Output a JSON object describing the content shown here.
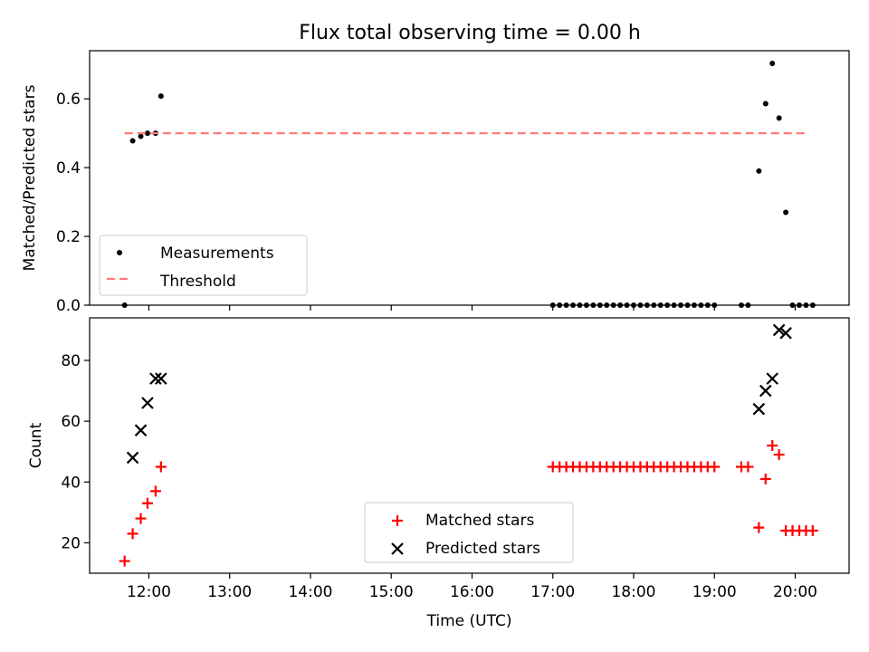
{
  "figure": {
    "title": "Flux total observing time = 0.00 h"
  },
  "chart_data": [
    {
      "type": "scatter",
      "panel": "top",
      "ylabel": "Matched/Predicted stars",
      "xlabel": "",
      "xlim": [
        "11:16",
        "20:40"
      ],
      "ylim": [
        0,
        0.74
      ],
      "yticks": [
        0.0,
        0.2,
        0.4,
        0.6
      ],
      "ytick_labels": [
        "0.0",
        "0.2",
        "0.4",
        "0.6"
      ],
      "grid": false,
      "legend_position": "lower-left",
      "series": [
        {
          "name": "Measurements",
          "style": "dot",
          "color": "#000000",
          "points": [
            [
              "11:42",
              0.0
            ],
            [
              "11:48",
              0.478
            ],
            [
              "11:54",
              0.491
            ],
            [
              "11:59",
              0.5
            ],
            [
              "12:05",
              0.5
            ],
            [
              "12:09",
              0.608
            ],
            [
              "17:00",
              0.0
            ],
            [
              "17:05",
              0.0
            ],
            [
              "17:10",
              0.0
            ],
            [
              "17:15",
              0.0
            ],
            [
              "17:20",
              0.0
            ],
            [
              "17:25",
              0.0
            ],
            [
              "17:30",
              0.0
            ],
            [
              "17:35",
              0.0
            ],
            [
              "17:40",
              0.0
            ],
            [
              "17:45",
              0.0
            ],
            [
              "17:50",
              0.0
            ],
            [
              "17:55",
              0.0
            ],
            [
              "18:00",
              0.0
            ],
            [
              "18:05",
              0.0
            ],
            [
              "18:10",
              0.0
            ],
            [
              "18:15",
              0.0
            ],
            [
              "18:20",
              0.0
            ],
            [
              "18:25",
              0.0
            ],
            [
              "18:30",
              0.0
            ],
            [
              "18:35",
              0.0
            ],
            [
              "18:40",
              0.0
            ],
            [
              "18:45",
              0.0
            ],
            [
              "18:50",
              0.0
            ],
            [
              "18:55",
              0.0
            ],
            [
              "19:00",
              0.0
            ],
            [
              "19:20",
              0.0
            ],
            [
              "19:25",
              0.0
            ],
            [
              "19:33",
              0.39
            ],
            [
              "19:38",
              0.586
            ],
            [
              "19:43",
              0.703
            ],
            [
              "19:48",
              0.544
            ],
            [
              "19:53",
              0.27
            ],
            [
              "19:58",
              0.0
            ],
            [
              "20:03",
              0.0
            ],
            [
              "20:08",
              0.0
            ],
            [
              "20:13",
              0.0
            ]
          ]
        },
        {
          "name": "Threshold",
          "style": "dashed-line",
          "color": "#ff7b7b",
          "points": [
            [
              "11:42",
              0.5
            ],
            [
              "20:09",
              0.5
            ]
          ]
        }
      ]
    },
    {
      "type": "scatter",
      "panel": "bottom",
      "ylabel": "Count",
      "xlabel": "Time (UTC)",
      "xlim": [
        "11:16",
        "20:40"
      ],
      "ylim": [
        10,
        94
      ],
      "yticks": [
        20,
        40,
        60,
        80
      ],
      "ytick_labels": [
        "20",
        "40",
        "60",
        "80"
      ],
      "xticks": [
        "12:00",
        "13:00",
        "14:00",
        "15:00",
        "16:00",
        "17:00",
        "18:00",
        "19:00",
        "20:00"
      ],
      "xtick_labels": [
        "12:00",
        "13:00",
        "14:00",
        "15:00",
        "16:00",
        "17:00",
        "18:00",
        "19:00",
        "20:00"
      ],
      "grid": false,
      "legend_position": "lower-center",
      "series": [
        {
          "name": "Matched stars",
          "style": "plus",
          "color": "#ff0000",
          "points": [
            [
              "11:42",
              14
            ],
            [
              "11:48",
              23
            ],
            [
              "11:54",
              28
            ],
            [
              "11:59",
              33
            ],
            [
              "12:05",
              37
            ],
            [
              "12:09",
              45
            ],
            [
              "17:00",
              45
            ],
            [
              "17:05",
              45
            ],
            [
              "17:10",
              45
            ],
            [
              "17:15",
              45
            ],
            [
              "17:20",
              45
            ],
            [
              "17:25",
              45
            ],
            [
              "17:30",
              45
            ],
            [
              "17:35",
              45
            ],
            [
              "17:40",
              45
            ],
            [
              "17:45",
              45
            ],
            [
              "17:50",
              45
            ],
            [
              "17:55",
              45
            ],
            [
              "18:00",
              45
            ],
            [
              "18:05",
              45
            ],
            [
              "18:10",
              45
            ],
            [
              "18:15",
              45
            ],
            [
              "18:20",
              45
            ],
            [
              "18:25",
              45
            ],
            [
              "18:30",
              45
            ],
            [
              "18:35",
              45
            ],
            [
              "18:40",
              45
            ],
            [
              "18:45",
              45
            ],
            [
              "18:50",
              45
            ],
            [
              "18:55",
              45
            ],
            [
              "19:00",
              45
            ],
            [
              "19:20",
              45
            ],
            [
              "19:25",
              45
            ],
            [
              "19:33",
              25
            ],
            [
              "19:38",
              41
            ],
            [
              "19:43",
              52
            ],
            [
              "19:48",
              49
            ],
            [
              "19:53",
              24
            ],
            [
              "19:58",
              24
            ],
            [
              "20:03",
              24
            ],
            [
              "20:08",
              24
            ],
            [
              "20:13",
              24
            ]
          ]
        },
        {
          "name": "Predicted stars",
          "style": "x",
          "color": "#000000",
          "points": [
            [
              "11:48",
              48
            ],
            [
              "11:54",
              57
            ],
            [
              "11:59",
              66
            ],
            [
              "12:05",
              74
            ],
            [
              "12:09",
              74
            ],
            [
              "19:33",
              64
            ],
            [
              "19:38",
              70
            ],
            [
              "19:43",
              74
            ],
            [
              "19:48",
              90
            ],
            [
              "19:53",
              89
            ]
          ]
        }
      ]
    }
  ]
}
